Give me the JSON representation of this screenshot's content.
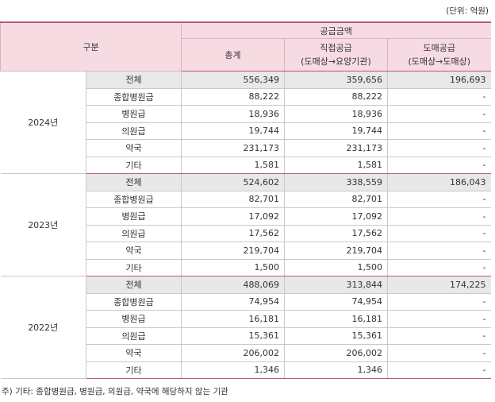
{
  "unit": "(단위: 억원)",
  "header": {
    "category": "구분",
    "group": "공급금액",
    "total": "총계",
    "direct": [
      "직접공급",
      "(도매상→요양기관)"
    ],
    "wholesale": [
      "도매공급",
      "(도매상→도매상)"
    ]
  },
  "groups": [
    {
      "year": "2024년",
      "rows": [
        [
          "전체",
          "556,349",
          "359,656",
          "196,693"
        ],
        [
          "종합병원급",
          "88,222",
          "88,222",
          "-"
        ],
        [
          "병원급",
          "18,936",
          "18,936",
          "-"
        ],
        [
          "의원급",
          "19,744",
          "19,744",
          "-"
        ],
        [
          "약국",
          "231,173",
          "231,173",
          "-"
        ],
        [
          "기타",
          "1,581",
          "1,581",
          "-"
        ]
      ]
    },
    {
      "year": "2023년",
      "rows": [
        [
          "전체",
          "524,602",
          "338,559",
          "186,043"
        ],
        [
          "종합병원급",
          "82,701",
          "82,701",
          "-"
        ],
        [
          "병원급",
          "17,092",
          "17,092",
          "-"
        ],
        [
          "의원급",
          "17,562",
          "17,562",
          "-"
        ],
        [
          "약국",
          "219,704",
          "219,704",
          "-"
        ],
        [
          "기타",
          "1,500",
          "1,500",
          "-"
        ]
      ]
    },
    {
      "year": "2022년",
      "rows": [
        [
          "전체",
          "488,069",
          "313,844",
          "174,225"
        ],
        [
          "종합병원급",
          "74,954",
          "74,954",
          "-"
        ],
        [
          "병원급",
          "16,181",
          "16,181",
          "-"
        ],
        [
          "의원급",
          "15,361",
          "15,361",
          "-"
        ],
        [
          "약국",
          "206,002",
          "206,002",
          "-"
        ],
        [
          "기타",
          "1,346",
          "1,346",
          "-"
        ]
      ]
    }
  ],
  "note": "주) 기타: 종합병원급, 병원급, 의원급, 약국에 해당하지 않는 기관"
}
